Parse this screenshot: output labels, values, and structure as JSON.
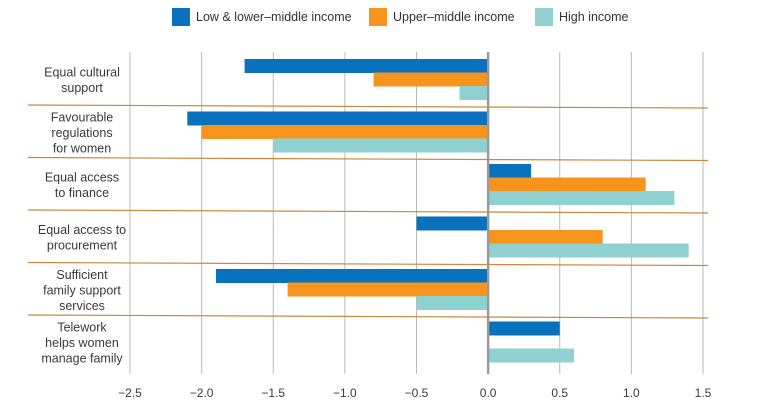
{
  "chart_data": {
    "type": "bar",
    "orientation": "horizontal",
    "title": "",
    "xlabel": "",
    "ylabel": "",
    "categories": [
      [
        "Equal cultural",
        "support"
      ],
      [
        "Favourable",
        "regulations",
        "for women"
      ],
      [
        "Equal access",
        "to finance"
      ],
      [
        "Equal access to",
        "procurement"
      ],
      [
        "Sufficient",
        "family support",
        "services"
      ],
      [
        "Telework",
        "helps women",
        "manage family"
      ]
    ],
    "series": [
      {
        "name": "Low & lower–middle income",
        "color": "#0a72bd",
        "values": [
          -1.7,
          -2.1,
          0.3,
          -0.5,
          -1.9,
          0.5
        ]
      },
      {
        "name": "Upper–middle income",
        "color": "#f7941d",
        "values": [
          -0.8,
          -2.0,
          1.1,
          0.8,
          -1.4,
          0.0
        ]
      },
      {
        "name": "High income",
        "color": "#8fd1d1",
        "values": [
          -0.2,
          -1.5,
          1.3,
          1.4,
          -0.5,
          0.6
        ]
      }
    ],
    "xlim": [
      -2.5,
      1.5
    ],
    "xticks": [
      -2.5,
      -2.0,
      -1.5,
      -1.0,
      -0.5,
      0.0,
      0.5,
      1.0,
      1.5
    ],
    "xtick_labels": [
      "−2.5",
      "−2.0",
      "−1.5",
      "−1.0",
      "−0.5",
      "0.0",
      "0.5",
      "1.0",
      "1.5"
    ],
    "grid": "vertical",
    "legend_position": "top",
    "colors": {
      "gridline": "#b9b9b9",
      "zero_line": "#9a9a9a",
      "separator": "#c9883a"
    }
  }
}
